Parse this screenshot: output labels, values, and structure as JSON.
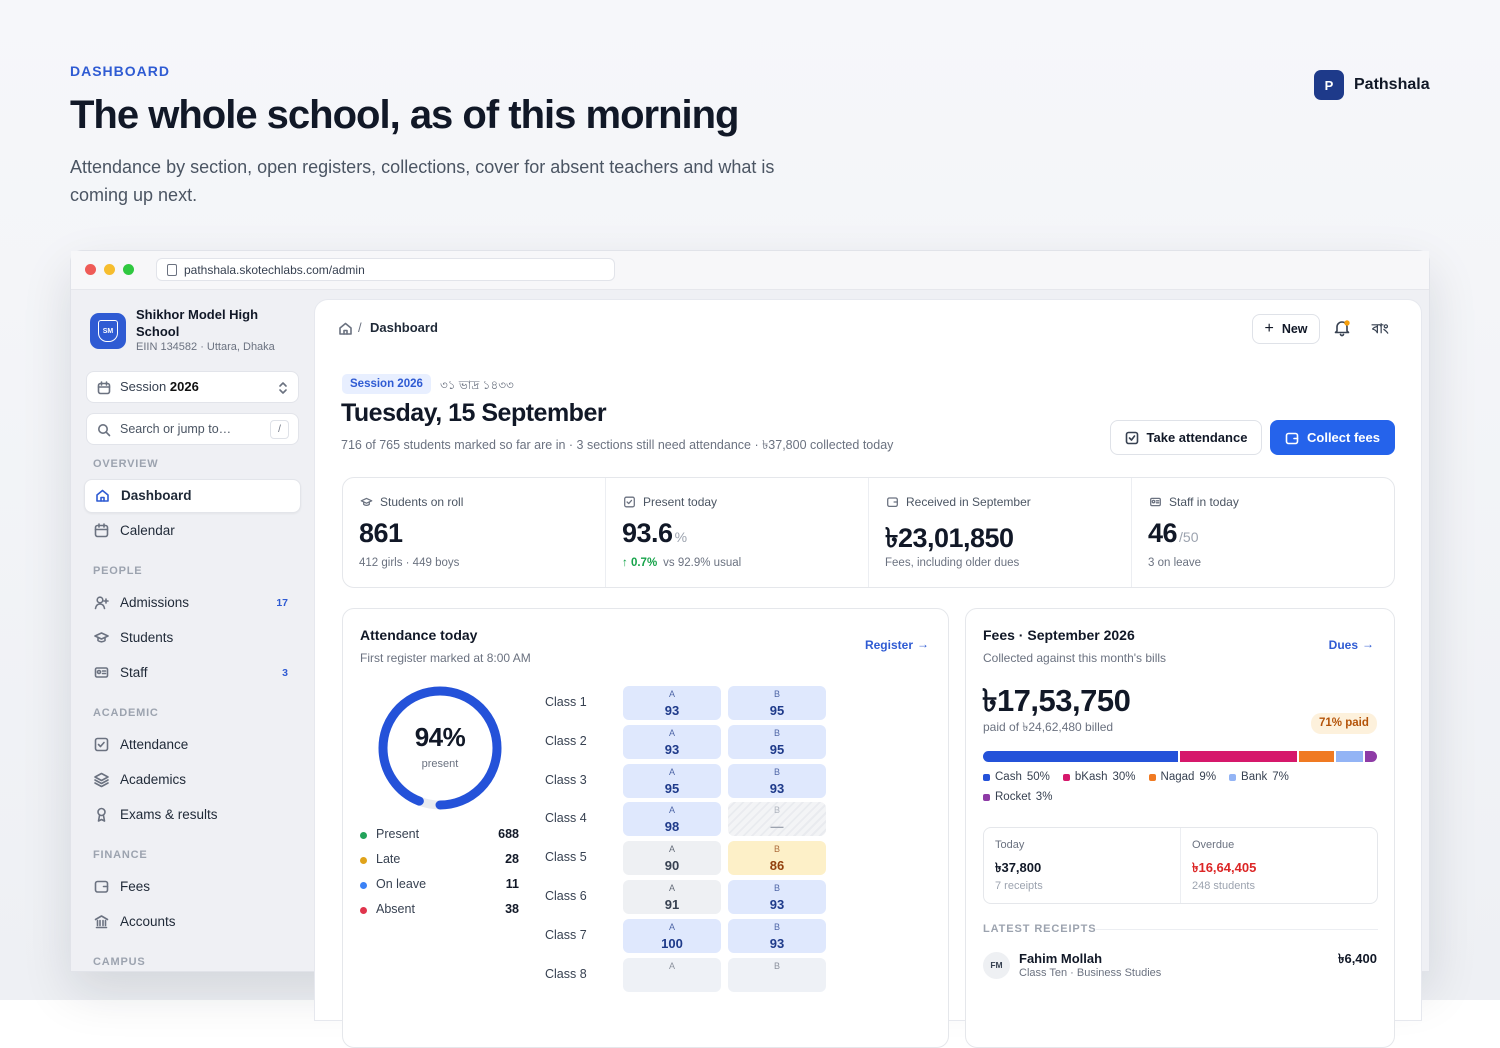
{
  "header": {
    "eyebrow": "DASHBOARD",
    "title": "The whole school, as of this morning",
    "subtitle": "Attendance by section, open registers, collections, cover for absent teachers and what is coming up next.",
    "brand_mark": "P",
    "brand": "Pathshala"
  },
  "browser": {
    "url": "pathshala.skotechlabs.com/admin"
  },
  "sidebar": {
    "school": {
      "logo": "SM",
      "name": "Shikhor Model High School",
      "meta": "EIIN 134582 · Uttara, Dhaka"
    },
    "session": {
      "label": "Session",
      "year": "2026"
    },
    "search": {
      "placeholder": "Search or jump to…",
      "shortcut": "/"
    },
    "sections": [
      {
        "title": "OVERVIEW",
        "items": [
          {
            "label": "Dashboard",
            "active": true
          },
          {
            "label": "Calendar"
          }
        ]
      },
      {
        "title": "PEOPLE",
        "items": [
          {
            "label": "Admissions",
            "badge": 17
          },
          {
            "label": "Students"
          },
          {
            "label": "Staff",
            "badge": 3
          }
        ]
      },
      {
        "title": "ACADEMIC",
        "items": [
          {
            "label": "Attendance"
          },
          {
            "label": "Academics"
          },
          {
            "label": "Exams & results"
          }
        ]
      },
      {
        "title": "FINANCE",
        "items": [
          {
            "label": "Fees"
          },
          {
            "label": "Accounts"
          }
        ]
      },
      {
        "title": "CAMPUS",
        "items": []
      }
    ]
  },
  "main": {
    "breadcrumb": "Dashboard",
    "new_button": "New",
    "language": "বাং",
    "session_badge": "Session 2026",
    "date_bn": "৩১ ভাদ্র ১৪৩৩",
    "title": "Tuesday, 15 September",
    "summary": "716 of 765 students marked so far are in · 3 sections still need attendance · ৳37,800 collected today",
    "actions": {
      "take_attendance": "Take attendance",
      "collect_fees": "Collect fees"
    },
    "stats": [
      {
        "label": "Students on roll",
        "value": 861,
        "note": "412 girls · 449 boys"
      },
      {
        "label": "Present today",
        "value": 93.6,
        "unit": "%",
        "delta": "0.7%",
        "note": "vs 92.9% usual"
      },
      {
        "label": "Received in September",
        "value": "৳23,01,850",
        "note": "Fees, including older dues"
      },
      {
        "label": "Staff in today",
        "value": 46,
        "unit": "/50",
        "note": "3 on leave"
      }
    ],
    "attendance": {
      "title": "Attendance today",
      "subtitle": "First register marked at 8:00 AM",
      "link": "Register",
      "donut": {
        "value": 94,
        "label": "94%",
        "caption": "present",
        "color": "#2452d9"
      },
      "legend": [
        {
          "name": "Present",
          "value": 688,
          "color": "#22a35a"
        },
        {
          "name": "Late",
          "value": 28,
          "color": "#e0a31a"
        },
        {
          "name": "On leave",
          "value": 11,
          "color": "#3b82f6"
        },
        {
          "name": "Absent",
          "value": 38,
          "color": "#e0344c"
        }
      ],
      "classes": [
        {
          "name": "Class 1",
          "sections": [
            {
              "section": "A",
              "value": 93
            },
            {
              "section": "B",
              "value": 95
            }
          ]
        },
        {
          "name": "Class 2",
          "sections": [
            {
              "section": "A",
              "value": 93
            },
            {
              "section": "B",
              "value": 95
            }
          ]
        },
        {
          "name": "Class 3",
          "sections": [
            {
              "section": "A",
              "value": 95
            },
            {
              "section": "B",
              "value": 93
            }
          ]
        },
        {
          "name": "Class 4",
          "sections": [
            {
              "section": "A",
              "value": 98
            },
            {
              "section": "B",
              "value": "—"
            }
          ]
        },
        {
          "name": "Class 5",
          "sections": [
            {
              "section": "A",
              "value": 90
            },
            {
              "section": "B",
              "value": 86
            }
          ]
        },
        {
          "name": "Class 6",
          "sections": [
            {
              "section": "A",
              "value": 91
            },
            {
              "section": "B",
              "value": 93
            }
          ]
        },
        {
          "name": "Class 7",
          "sections": [
            {
              "section": "A",
              "value": 100
            },
            {
              "section": "B",
              "value": 93
            }
          ]
        },
        {
          "name": "Class 8",
          "sections": [
            {
              "section": "A"
            },
            {
              "section": "B"
            }
          ]
        }
      ]
    },
    "fees": {
      "title": "Fees · September 2026",
      "subtitle": "Collected against this month's bills",
      "link": "Dues",
      "amount": "৳17,53,750",
      "billed": "paid of ৳24,62,480 billed",
      "paid_badge": "71% paid",
      "breakdown": [
        {
          "name": "Cash",
          "value": 50,
          "value_label": "50%",
          "color": "#2452d9"
        },
        {
          "name": "bKash",
          "value": 30,
          "value_label": "30%",
          "color": "#d6186b"
        },
        {
          "name": "Nagad",
          "value": 9,
          "value_label": "9%",
          "color": "#f07a22"
        },
        {
          "name": "Bank",
          "value": 7,
          "value_label": "7%",
          "color": "#93b4f5"
        },
        {
          "name": "Rocket",
          "value": 3,
          "value_label": "3%",
          "color": "#8e3ba6"
        }
      ],
      "summary": [
        {
          "label": "Today",
          "value": "৳37,800",
          "note": "7 receipts"
        },
        {
          "label": "Overdue",
          "value": "৳16,64,405",
          "note": "248 students",
          "alert": true
        }
      ],
      "receipts_title": "LATEST RECEIPTS",
      "receipts": [
        {
          "initials": "FM",
          "name": "Fahim Mollah",
          "detail": "Class Ten · Business Studies",
          "amount": "৳6,400"
        }
      ]
    }
  }
}
